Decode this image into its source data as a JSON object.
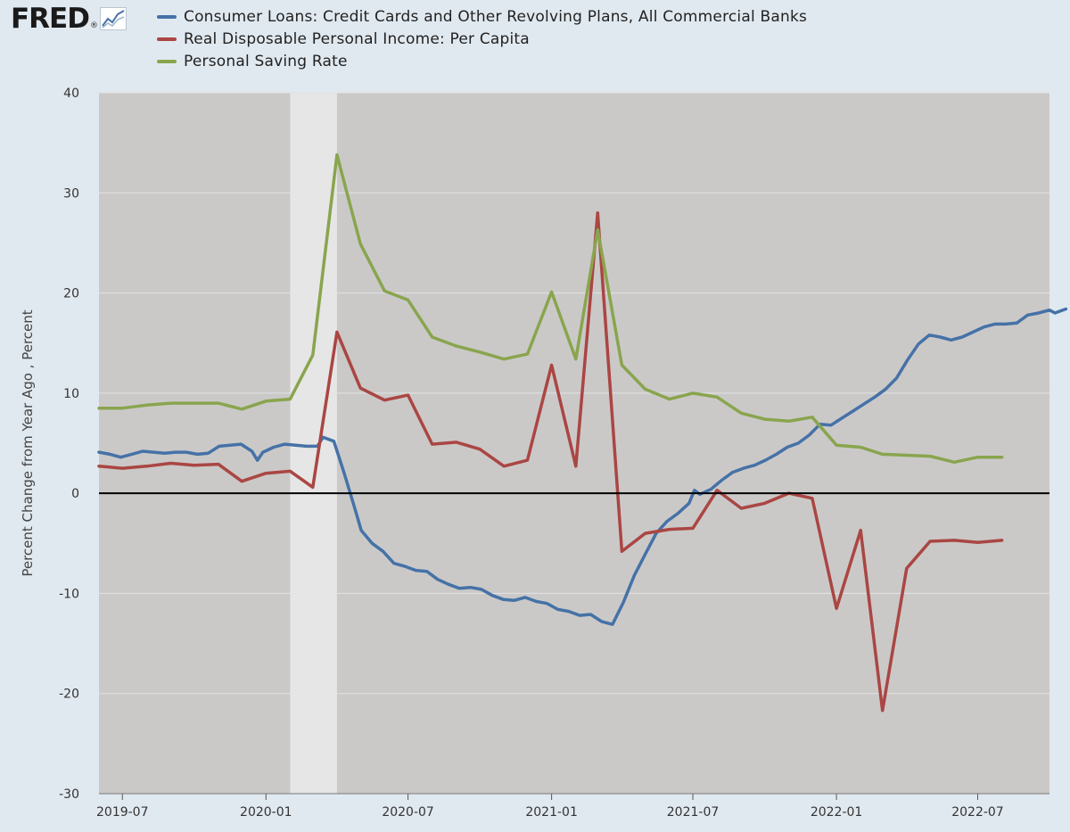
{
  "header": {
    "logo_text": "FRED",
    "logo_reg": "®",
    "logo_icon": "line-chart-icon"
  },
  "chart_data": {
    "type": "line",
    "ylabel": "Percent Change from Year Ago , Percent",
    "ylim": [
      -30,
      40
    ],
    "yticks": [
      "40",
      "30",
      "20",
      "10",
      "0",
      "-10",
      "-20",
      "-30"
    ],
    "xlim": [
      "2019-06",
      "2022-10"
    ],
    "xticks": [
      "2019-07",
      "2020-01",
      "2020-07",
      "2021-01",
      "2021-07",
      "2022-01",
      "2022-07"
    ],
    "recession": {
      "start": "2020-02",
      "end": "2020-04"
    },
    "background": "#cbc9c8",
    "zero_line": true,
    "grid": "horizontal",
    "series": [
      {
        "name": "Consumer Loans: Credit Cards and Other Revolving Plans, All Commercial Banks",
        "color": "#4572a7",
        "frequency": "weekly",
        "points": [
          [
            "2019-06-01",
            4.1
          ],
          [
            "2019-06-15",
            3.9
          ],
          [
            "2019-06-29",
            3.6
          ],
          [
            "2019-07-13",
            3.9
          ],
          [
            "2019-07-27",
            4.2
          ],
          [
            "2019-08-10",
            4.1
          ],
          [
            "2019-08-24",
            4.0
          ],
          [
            "2019-09-07",
            4.1
          ],
          [
            "2019-09-21",
            4.1
          ],
          [
            "2019-10-05",
            3.9
          ],
          [
            "2019-10-19",
            4.0
          ],
          [
            "2019-11-02",
            4.7
          ],
          [
            "2019-11-16",
            4.8
          ],
          [
            "2019-11-30",
            4.9
          ],
          [
            "2019-12-14",
            4.2
          ],
          [
            "2019-12-21",
            3.3
          ],
          [
            "2019-12-28",
            4.1
          ],
          [
            "2020-01-11",
            4.6
          ],
          [
            "2020-01-25",
            4.9
          ],
          [
            "2020-02-08",
            4.8
          ],
          [
            "2020-02-22",
            4.7
          ],
          [
            "2020-03-07",
            4.7
          ],
          [
            "2020-03-14",
            5.6
          ],
          [
            "2020-03-28",
            5.2
          ],
          [
            "2020-04-04",
            3.5
          ],
          [
            "2020-04-11",
            1.8
          ],
          [
            "2020-04-25",
            -1.8
          ],
          [
            "2020-05-02",
            -3.7
          ],
          [
            "2020-05-16",
            -5.0
          ],
          [
            "2020-05-30",
            -5.8
          ],
          [
            "2020-06-13",
            -7.0
          ],
          [
            "2020-06-27",
            -7.3
          ],
          [
            "2020-07-11",
            -7.7
          ],
          [
            "2020-07-25",
            -7.8
          ],
          [
            "2020-08-08",
            -8.6
          ],
          [
            "2020-08-22",
            -9.1
          ],
          [
            "2020-09-05",
            -9.5
          ],
          [
            "2020-09-19",
            -9.4
          ],
          [
            "2020-10-03",
            -9.6
          ],
          [
            "2020-10-17",
            -10.2
          ],
          [
            "2020-10-31",
            -10.6
          ],
          [
            "2020-11-14",
            -10.7
          ],
          [
            "2020-11-28",
            -10.4
          ],
          [
            "2020-12-12",
            -10.8
          ],
          [
            "2020-12-26",
            -11.0
          ],
          [
            "2021-01-09",
            -11.6
          ],
          [
            "2021-01-23",
            -11.8
          ],
          [
            "2021-02-06",
            -12.2
          ],
          [
            "2021-02-20",
            -12.1
          ],
          [
            "2021-03-06",
            -12.8
          ],
          [
            "2021-03-20",
            -13.1
          ],
          [
            "2021-04-03",
            -10.9
          ],
          [
            "2021-04-17",
            -8.2
          ],
          [
            "2021-05-01",
            -6.1
          ],
          [
            "2021-05-15",
            -4.0
          ],
          [
            "2021-05-29",
            -2.8
          ],
          [
            "2021-06-12",
            -2.0
          ],
          [
            "2021-06-26",
            -1.0
          ],
          [
            "2021-07-03",
            0.3
          ],
          [
            "2021-07-10",
            -0.1
          ],
          [
            "2021-07-24",
            0.4
          ],
          [
            "2021-08-07",
            1.3
          ],
          [
            "2021-08-21",
            2.1
          ],
          [
            "2021-09-04",
            2.5
          ],
          [
            "2021-09-18",
            2.8
          ],
          [
            "2021-10-02",
            3.3
          ],
          [
            "2021-10-16",
            3.9
          ],
          [
            "2021-10-30",
            4.6
          ],
          [
            "2021-11-13",
            5.0
          ],
          [
            "2021-11-27",
            5.8
          ],
          [
            "2021-12-11",
            6.9
          ],
          [
            "2021-12-25",
            6.8
          ],
          [
            "2022-01-08",
            7.5
          ],
          [
            "2022-01-22",
            8.2
          ],
          [
            "2022-02-05",
            8.9
          ],
          [
            "2022-02-19",
            9.6
          ],
          [
            "2022-03-05",
            10.4
          ],
          [
            "2022-03-19",
            11.5
          ],
          [
            "2022-04-02",
            13.3
          ],
          [
            "2022-04-16",
            14.9
          ],
          [
            "2022-04-30",
            15.8
          ],
          [
            "2022-05-14",
            15.6
          ],
          [
            "2022-05-28",
            15.3
          ],
          [
            "2022-06-11",
            15.6
          ],
          [
            "2022-06-25",
            16.1
          ],
          [
            "2022-07-09",
            16.6
          ],
          [
            "2022-07-23",
            16.9
          ],
          [
            "2022-08-06",
            16.9
          ],
          [
            "2022-08-20",
            17.0
          ],
          [
            "2022-09-03",
            17.8
          ],
          [
            "2022-09-17",
            18.0
          ],
          [
            "2022-10-01",
            18.3
          ],
          [
            "2022-10-08",
            18.0
          ],
          [
            "2022-10-22",
            18.4
          ]
        ]
      },
      {
        "name": "Real Disposable Personal Income: Per Capita",
        "color": "#aa4643",
        "frequency": "monthly",
        "points": [
          [
            "2019-06-01",
            2.7
          ],
          [
            "2019-07-01",
            2.5
          ],
          [
            "2019-08-01",
            2.7
          ],
          [
            "2019-09-01",
            3.0
          ],
          [
            "2019-10-01",
            2.8
          ],
          [
            "2019-11-01",
            2.9
          ],
          [
            "2019-12-01",
            1.2
          ],
          [
            "2020-01-01",
            2.0
          ],
          [
            "2020-02-01",
            2.2
          ],
          [
            "2020-03-01",
            0.6
          ],
          [
            "2020-04-01",
            16.1
          ],
          [
            "2020-05-01",
            10.5
          ],
          [
            "2020-06-01",
            9.3
          ],
          [
            "2020-07-01",
            9.8
          ],
          [
            "2020-08-01",
            4.9
          ],
          [
            "2020-09-01",
            5.1
          ],
          [
            "2020-10-01",
            4.4
          ],
          [
            "2020-11-01",
            2.7
          ],
          [
            "2020-12-01",
            3.3
          ],
          [
            "2021-01-01",
            12.8
          ],
          [
            "2021-02-01",
            2.7
          ],
          [
            "2021-03-01",
            28.0
          ],
          [
            "2021-04-01",
            -5.8
          ],
          [
            "2021-05-01",
            -4.0
          ],
          [
            "2021-06-01",
            -3.6
          ],
          [
            "2021-07-01",
            -3.5
          ],
          [
            "2021-08-01",
            0.3
          ],
          [
            "2021-09-01",
            -1.5
          ],
          [
            "2021-10-01",
            -1.0
          ],
          [
            "2021-11-01",
            0.0
          ],
          [
            "2021-12-01",
            -0.5
          ],
          [
            "2022-01-01",
            -11.5
          ],
          [
            "2022-02-01",
            -3.7
          ],
          [
            "2022-03-01",
            -21.7
          ],
          [
            "2022-04-01",
            -7.5
          ],
          [
            "2022-05-01",
            -4.8
          ],
          [
            "2022-06-01",
            -4.7
          ],
          [
            "2022-07-01",
            -4.9
          ],
          [
            "2022-08-01",
            -4.7
          ]
        ]
      },
      {
        "name": "Personal Saving Rate",
        "color": "#89a54e",
        "frequency": "monthly",
        "points": [
          [
            "2019-06-01",
            8.5
          ],
          [
            "2019-07-01",
            8.5
          ],
          [
            "2019-08-01",
            8.8
          ],
          [
            "2019-09-01",
            9.0
          ],
          [
            "2019-10-01",
            9.0
          ],
          [
            "2019-11-01",
            9.0
          ],
          [
            "2019-12-01",
            8.4
          ],
          [
            "2020-01-01",
            9.2
          ],
          [
            "2020-02-01",
            9.4
          ],
          [
            "2020-03-01",
            13.8
          ],
          [
            "2020-04-01",
            33.8
          ],
          [
            "2020-05-01",
            24.9
          ],
          [
            "2020-06-01",
            20.2
          ],
          [
            "2020-07-01",
            19.3
          ],
          [
            "2020-08-01",
            15.6
          ],
          [
            "2020-09-01",
            14.7
          ],
          [
            "2020-10-01",
            14.1
          ],
          [
            "2020-11-01",
            13.4
          ],
          [
            "2020-12-01",
            13.9
          ],
          [
            "2021-01-01",
            20.1
          ],
          [
            "2021-02-01",
            13.4
          ],
          [
            "2021-03-01",
            26.3
          ],
          [
            "2021-04-01",
            12.8
          ],
          [
            "2021-05-01",
            10.4
          ],
          [
            "2021-06-01",
            9.4
          ],
          [
            "2021-07-01",
            10.0
          ],
          [
            "2021-08-01",
            9.6
          ],
          [
            "2021-09-01",
            8.0
          ],
          [
            "2021-10-01",
            7.4
          ],
          [
            "2021-11-01",
            7.2
          ],
          [
            "2021-12-01",
            7.6
          ],
          [
            "2022-01-01",
            4.8
          ],
          [
            "2022-02-01",
            4.6
          ],
          [
            "2022-03-01",
            3.9
          ],
          [
            "2022-04-01",
            3.8
          ],
          [
            "2022-05-01",
            3.7
          ],
          [
            "2022-06-01",
            3.1
          ],
          [
            "2022-07-01",
            3.6
          ],
          [
            "2022-08-01",
            3.6
          ]
        ]
      }
    ]
  }
}
